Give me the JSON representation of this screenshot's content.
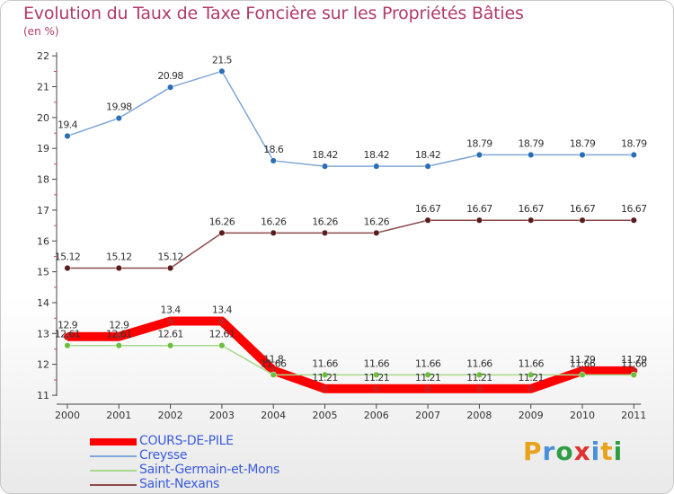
{
  "header": {
    "title": "Evolution du Taux de Taxe Foncière sur les Propriétés Bâties",
    "subtitle": "(en %)"
  },
  "logo": {
    "text": "Proxiti",
    "colors": [
      "#e8a21c",
      "#4a90d9",
      "#2f9e44",
      "#e03131",
      "#4a90d9",
      "#e8a21c",
      "#2f9e44"
    ]
  },
  "chart_data": {
    "type": "line",
    "title": "Evolution du Taux de Taxe Foncière sur les Propriétés Bâties",
    "ylabel": "(en %)",
    "xlabel": "",
    "ylim": [
      11,
      22
    ],
    "yticks": [
      11,
      12,
      13,
      14,
      15,
      16,
      17,
      18,
      19,
      20,
      21,
      22
    ],
    "grid": false,
    "legend_position": "bottom-left",
    "categories": [
      "2000",
      "2001",
      "2002",
      "2003",
      "2004",
      "2005",
      "2006",
      "2007",
      "2008",
      "2009",
      "2010",
      "2011"
    ],
    "series": [
      {
        "name": "COURS-DE-PILE",
        "color": "#ff0000",
        "marker": "#d81818",
        "thick": true,
        "values": [
          12.9,
          12.9,
          13.4,
          13.4,
          11.8,
          11.21,
          11.21,
          11.21,
          11.21,
          11.21,
          11.79,
          11.79
        ],
        "labels": [
          "12.9",
          "12.9",
          "13.4",
          "13.4",
          "11.8",
          "11.21",
          "11.21",
          "11.21",
          "11.21",
          "11.21",
          "11.79",
          "11.79"
        ]
      },
      {
        "name": "Creysse",
        "color": "#7ea6d6",
        "marker": "#2a6fb5",
        "thick": false,
        "values": [
          19.4,
          19.98,
          20.98,
          21.5,
          18.6,
          18.42,
          18.42,
          18.42,
          18.79,
          18.79,
          18.79,
          18.79
        ],
        "labels": [
          "19.4",
          "19.98",
          "20.98",
          "21.5",
          "18.6",
          "18.42",
          "18.42",
          "18.42",
          "18.79",
          "18.79",
          "18.79",
          "18.79"
        ]
      },
      {
        "name": "Saint-Germain-et-Mons",
        "color": "#a6d98a",
        "marker": "#6cbf3c",
        "thick": false,
        "values": [
          12.61,
          12.61,
          12.61,
          12.61,
          11.66,
          11.66,
          11.66,
          11.66,
          11.66,
          11.66,
          11.66,
          11.66
        ],
        "labels": [
          "12.61",
          "12.61",
          "12.61",
          "12.61",
          "11.66",
          "11.66",
          "11.66",
          "11.66",
          "11.66",
          "11.66",
          "11.66",
          "11.66"
        ]
      },
      {
        "name": "Saint-Nexans",
        "color": "#8b4a4a",
        "marker": "#5a1c1c",
        "thick": false,
        "values": [
          15.12,
          15.12,
          15.12,
          16.26,
          16.26,
          16.26,
          16.26,
          16.67,
          16.67,
          16.67,
          16.67,
          16.67
        ],
        "labels": [
          "15.12",
          "15.12",
          "15.12",
          "16.26",
          "16.26",
          "16.26",
          "16.26",
          "16.67",
          "16.67",
          "16.67",
          "16.67",
          "16.67"
        ]
      }
    ]
  }
}
